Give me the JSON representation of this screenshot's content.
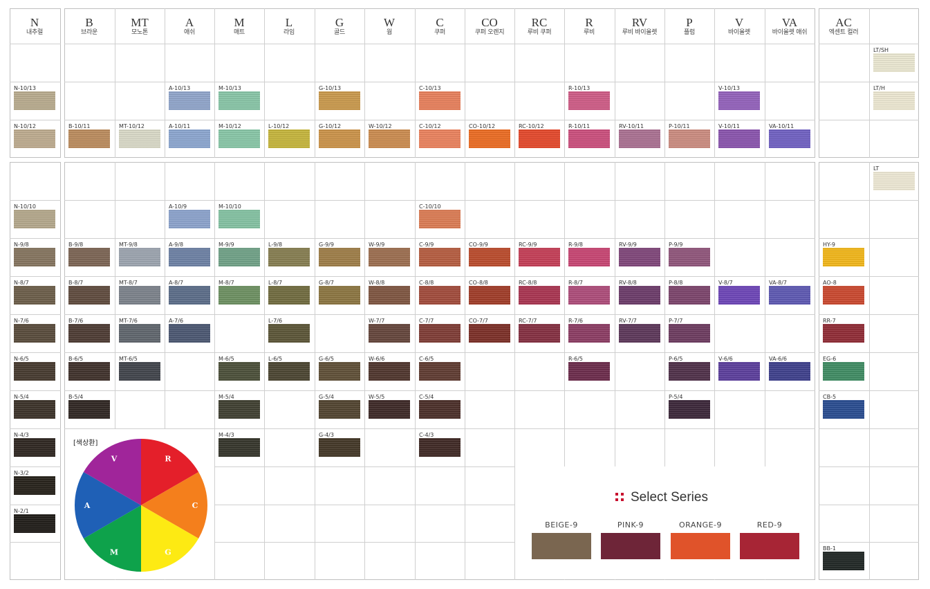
{
  "headers": [
    {
      "code": "N",
      "name": "내추럴"
    },
    {
      "code": "B",
      "name": "브라운"
    },
    {
      "code": "MT",
      "name": "모노톤"
    },
    {
      "code": "A",
      "name": "애쉬"
    },
    {
      "code": "M",
      "name": "매트"
    },
    {
      "code": "L",
      "name": "라임"
    },
    {
      "code": "G",
      "name": "골드"
    },
    {
      "code": "W",
      "name": "웜"
    },
    {
      "code": "C",
      "name": "쿠퍼"
    },
    {
      "code": "CO",
      "name": "쿠퍼 오렌지"
    },
    {
      "code": "RC",
      "name": "루비 쿠퍼"
    },
    {
      "code": "R",
      "name": "루비"
    },
    {
      "code": "RV",
      "name": "루비 바이올렛"
    },
    {
      "code": "P",
      "name": "플럼"
    },
    {
      "code": "V",
      "name": "바이올렛"
    },
    {
      "code": "VA",
      "name": "바이올렛 애쉬"
    },
    {
      "code": "AC",
      "name": "엑센트 컬러"
    },
    {
      "code": "",
      "name": ""
    }
  ],
  "swatches": [
    {
      "label": "LT/SH",
      "col": 17,
      "row": 0,
      "color": "#e8e5cf"
    },
    {
      "label": "N-10/13",
      "col": 0,
      "row": 1,
      "color": "#b6a98c"
    },
    {
      "label": "A-10/13",
      "col": 3,
      "row": 1,
      "color": "#8ea3c8"
    },
    {
      "label": "M-10/13",
      "col": 4,
      "row": 1,
      "color": "#86c3a5"
    },
    {
      "label": "G-10/13",
      "col": 6,
      "row": 1,
      "color": "#c7974b"
    },
    {
      "label": "C-10/13",
      "col": 8,
      "row": 1,
      "color": "#e57e5a"
    },
    {
      "label": "R-10/13",
      "col": 11,
      "row": 1,
      "color": "#cc5a84"
    },
    {
      "label": "V-10/13",
      "col": 14,
      "row": 1,
      "color": "#9160b9"
    },
    {
      "label": "LT/H",
      "col": 17,
      "row": 1,
      "color": "#eae5cf"
    },
    {
      "label": "N-10/12",
      "col": 0,
      "row": 2,
      "color": "#bba98d"
    },
    {
      "label": "B-10/11",
      "col": 1,
      "row": 2,
      "color": "#b98a5c"
    },
    {
      "label": "MT-10/12",
      "col": 2,
      "row": 2,
      "color": "#d7d7c5"
    },
    {
      "label": "A-10/11",
      "col": 3,
      "row": 2,
      "color": "#8aa4cd"
    },
    {
      "label": "M-10/12",
      "col": 4,
      "row": 2,
      "color": "#86c4a5"
    },
    {
      "label": "L-10/12",
      "col": 5,
      "row": 2,
      "color": "#c3b33b"
    },
    {
      "label": "G-10/12",
      "col": 6,
      "row": 2,
      "color": "#c99148"
    },
    {
      "label": "W-10/12",
      "col": 7,
      "row": 2,
      "color": "#c98a4e"
    },
    {
      "label": "C-10/12",
      "col": 8,
      "row": 2,
      "color": "#e8805c"
    },
    {
      "label": "CO-10/12",
      "col": 9,
      "row": 2,
      "color": "#e96a21"
    },
    {
      "label": "RC-10/12",
      "col": 10,
      "row": 2,
      "color": "#e2472a"
    },
    {
      "label": "R-10/11",
      "col": 11,
      "row": 2,
      "color": "#c94d7b"
    },
    {
      "label": "RV-10/11",
      "col": 12,
      "row": 2,
      "color": "#a86f90"
    },
    {
      "label": "P-10/11",
      "col": 13,
      "row": 2,
      "color": "#c98a7e"
    },
    {
      "label": "V-10/11",
      "col": 14,
      "row": 2,
      "color": "#8852ab"
    },
    {
      "label": "VA-10/11",
      "col": 15,
      "row": 2,
      "color": "#6e5fc0"
    },
    {
      "label": "LT",
      "col": 17,
      "row": 3,
      "color": "#ebe6d2"
    },
    {
      "label": "N-10/10",
      "col": 0,
      "row": 4,
      "color": "#b2a68a"
    },
    {
      "label": "A-10/9",
      "col": 3,
      "row": 4,
      "color": "#8aa1ca"
    },
    {
      "label": "M-10/10",
      "col": 4,
      "row": 4,
      "color": "#82c0a0"
    },
    {
      "label": "C-10/10",
      "col": 8,
      "row": 4,
      "color": "#d97a52"
    },
    {
      "label": "N-9/8",
      "col": 0,
      "row": 5,
      "color": "#83735d"
    },
    {
      "label": "B-9/8",
      "col": 1,
      "row": 5,
      "color": "#7a6352"
    },
    {
      "label": "MT-9/8",
      "col": 2,
      "row": 5,
      "color": "#9aa2ad"
    },
    {
      "label": "A-9/8",
      "col": 3,
      "row": 5,
      "color": "#6b7fa2"
    },
    {
      "label": "M-9/9",
      "col": 4,
      "row": 5,
      "color": "#6e9f85"
    },
    {
      "label": "L-9/8",
      "col": 5,
      "row": 5,
      "color": "#847c4f"
    },
    {
      "label": "G-9/9",
      "col": 6,
      "row": 5,
      "color": "#9c7c46"
    },
    {
      "label": "W-9/9",
      "col": 7,
      "row": 5,
      "color": "#9a6c4e"
    },
    {
      "label": "C-9/9",
      "col": 8,
      "row": 5,
      "color": "#b35b3f"
    },
    {
      "label": "CO-9/9",
      "col": 9,
      "row": 5,
      "color": "#b84a2b"
    },
    {
      "label": "RC-9/9",
      "col": 10,
      "row": 5,
      "color": "#c23d55"
    },
    {
      "label": "R-9/8",
      "col": 11,
      "row": 5,
      "color": "#c54471"
    },
    {
      "label": "RV-9/9",
      "col": 12,
      "row": 5,
      "color": "#7e4578"
    },
    {
      "label": "P-9/9",
      "col": 13,
      "row": 5,
      "color": "#8e5479"
    },
    {
      "label": "HY-9",
      "col": 16,
      "row": 5,
      "color": "#efb419"
    },
    {
      "label": "N-8/7",
      "col": 0,
      "row": 6,
      "color": "#6a5c48"
    },
    {
      "label": "B-8/7",
      "col": 1,
      "row": 6,
      "color": "#5e4a3d"
    },
    {
      "label": "MT-8/7",
      "col": 2,
      "row": 6,
      "color": "#7a8089"
    },
    {
      "label": "A-8/7",
      "col": 3,
      "row": 6,
      "color": "#5a6b87"
    },
    {
      "label": "M-8/7",
      "col": 4,
      "row": 6,
      "color": "#6b8e60"
    },
    {
      "label": "L-8/7",
      "col": 5,
      "row": 6,
      "color": "#6f6a3e"
    },
    {
      "label": "G-8/7",
      "col": 6,
      "row": 6,
      "color": "#8a7440"
    },
    {
      "label": "W-8/8",
      "col": 7,
      "row": 6,
      "color": "#7d5440"
    },
    {
      "label": "C-8/8",
      "col": 8,
      "row": 6,
      "color": "#9f4a3a"
    },
    {
      "label": "CO-8/8",
      "col": 9,
      "row": 6,
      "color": "#9e3b27"
    },
    {
      "label": "RC-8/8",
      "col": 10,
      "row": 6,
      "color": "#a7334f"
    },
    {
      "label": "R-8/7",
      "col": 11,
      "row": 6,
      "color": "#ab4b78"
    },
    {
      "label": "RV-8/8",
      "col": 12,
      "row": 6,
      "color": "#6a3a68"
    },
    {
      "label": "P-8/8",
      "col": 13,
      "row": 6,
      "color": "#7a436a"
    },
    {
      "label": "V-8/7",
      "col": 14,
      "row": 6,
      "color": "#6b44b5"
    },
    {
      "label": "VA-8/7",
      "col": 15,
      "row": 6,
      "color": "#5c57b0"
    },
    {
      "label": "AO-8",
      "col": 16,
      "row": 6,
      "color": "#c8472e"
    },
    {
      "label": "N-7/6",
      "col": 0,
      "row": 7,
      "color": "#574a3a"
    },
    {
      "label": "B-7/6",
      "col": 1,
      "row": 7,
      "color": "#4c3a32"
    },
    {
      "label": "MT-7/6",
      "col": 2,
      "row": 7,
      "color": "#5e646b"
    },
    {
      "label": "A-7/6",
      "col": 3,
      "row": 7,
      "color": "#4a5670"
    },
    {
      "label": "L-7/6",
      "col": 5,
      "row": 7,
      "color": "#5a5436"
    },
    {
      "label": "W-7/7",
      "col": 7,
      "row": 7,
      "color": "#63443a"
    },
    {
      "label": "C-7/7",
      "col": 8,
      "row": 7,
      "color": "#7d3b34"
    },
    {
      "label": "CO-7/7",
      "col": 9,
      "row": 7,
      "color": "#7a2e26"
    },
    {
      "label": "RC-7/7",
      "col": 10,
      "row": 7,
      "color": "#822e40"
    },
    {
      "label": "R-7/6",
      "col": 11,
      "row": 7,
      "color": "#8a3b62"
    },
    {
      "label": "RV-7/7",
      "col": 12,
      "row": 7,
      "color": "#5b3658"
    },
    {
      "label": "P-7/7",
      "col": 13,
      "row": 7,
      "color": "#6b3a5e"
    },
    {
      "label": "RR-7",
      "col": 16,
      "row": 7,
      "color": "#8e2a34"
    },
    {
      "label": "N-6/5",
      "col": 0,
      "row": 8,
      "color": "#45392e"
    },
    {
      "label": "B-6/5",
      "col": 1,
      "row": 8,
      "color": "#3e302a"
    },
    {
      "label": "MT-6/5",
      "col": 2,
      "row": 8,
      "color": "#40434a"
    },
    {
      "label": "M-6/5",
      "col": 4,
      "row": 8,
      "color": "#4a4e38"
    },
    {
      "label": "L-6/5",
      "col": 5,
      "row": 8,
      "color": "#4a4430"
    },
    {
      "label": "G-6/5",
      "col": 6,
      "row": 8,
      "color": "#5e4e36"
    },
    {
      "label": "W-6/6",
      "col": 7,
      "row": 8,
      "color": "#4e342c"
    },
    {
      "label": "C-6/5",
      "col": 8,
      "row": 8,
      "color": "#5e3a30"
    },
    {
      "label": "R-6/5",
      "col": 11,
      "row": 8,
      "color": "#6a2a4a"
    },
    {
      "label": "P-6/5",
      "col": 13,
      "row": 8,
      "color": "#4e2f48"
    },
    {
      "label": "V-6/6",
      "col": 14,
      "row": 8,
      "color": "#5a3d9a"
    },
    {
      "label": "VA-6/6",
      "col": 15,
      "row": 8,
      "color": "#3d3f8a"
    },
    {
      "label": "EG-6",
      "col": 16,
      "row": 8,
      "color": "#3e8a62"
    },
    {
      "label": "N-5/4",
      "col": 0,
      "row": 9,
      "color": "#3a3128"
    },
    {
      "label": "B-5/4",
      "col": 1,
      "row": 9,
      "color": "#2f2622"
    },
    {
      "label": "M-5/4",
      "col": 4,
      "row": 9,
      "color": "#3e3e30"
    },
    {
      "label": "G-5/4",
      "col": 6,
      "row": 9,
      "color": "#50432f"
    },
    {
      "label": "W-5/5",
      "col": 7,
      "row": 9,
      "color": "#3c2826"
    },
    {
      "label": "C-5/4",
      "col": 8,
      "row": 9,
      "color": "#4a2e28"
    },
    {
      "label": "P-5/4",
      "col": 13,
      "row": 9,
      "color": "#3a2638"
    },
    {
      "label": "CB-5",
      "col": 16,
      "row": 9,
      "color": "#284b8e"
    },
    {
      "label": "N-4/3",
      "col": 0,
      "row": 10,
      "color": "#2e2620"
    },
    {
      "label": "M-4/3",
      "col": 4,
      "row": 10,
      "color": "#34342a"
    },
    {
      "label": "G-4/3",
      "col": 6,
      "row": 10,
      "color": "#423626"
    },
    {
      "label": "C-4/3",
      "col": 8,
      "row": 10,
      "color": "#3e2824"
    },
    {
      "label": "N-3/2",
      "col": 0,
      "row": 11,
      "color": "#252019"
    },
    {
      "label": "N-2/1",
      "col": 0,
      "row": 12,
      "color": "#1e1b17"
    },
    {
      "label": "BB-1",
      "col": 16,
      "row": 13,
      "color": "#1f2624"
    }
  ],
  "wheel": {
    "label": "[색상환]",
    "segments": [
      {
        "letter": "R",
        "color": "#e41f2a"
      },
      {
        "letter": "C",
        "color": "#f47f1c"
      },
      {
        "letter": "G",
        "color": "#fdea13"
      },
      {
        "letter": "M",
        "color": "#0ea24b"
      },
      {
        "letter": "A",
        "color": "#1f60b6"
      },
      {
        "letter": "V",
        "color": "#a0259a"
      }
    ]
  },
  "select_series": {
    "title": "Select Series",
    "accent": "#c8102e",
    "items": [
      {
        "name": "BEIGE-9",
        "color": "#7a6650"
      },
      {
        "name": "PINK-9",
        "color": "#6e2538"
      },
      {
        "name": "ORANGE-9",
        "color": "#e0532a"
      },
      {
        "name": "RED-9",
        "color": "#a72535"
      }
    ]
  }
}
